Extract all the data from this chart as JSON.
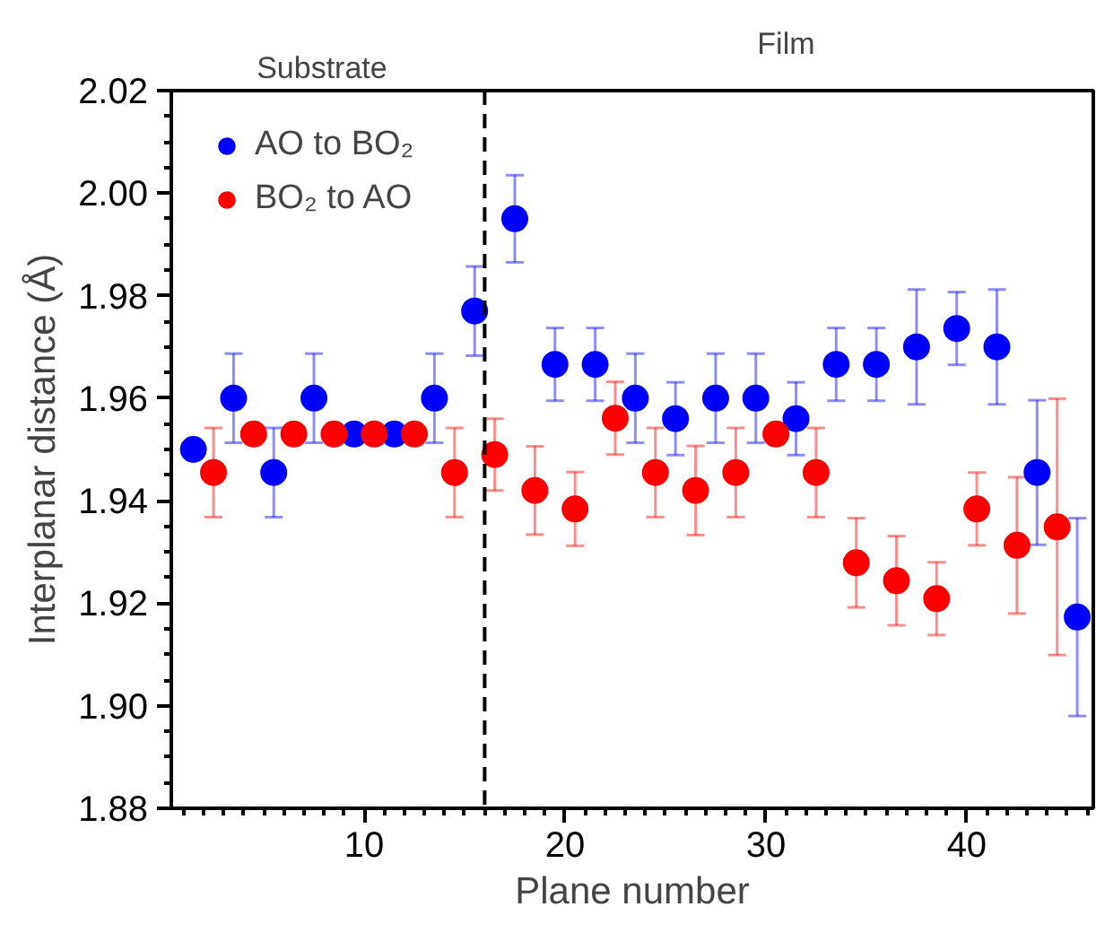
{
  "chart_data": {
    "type": "scatter",
    "xlabel": "Plane number",
    "ylabel": "Interplanar distance (Å)",
    "xlim": [
      0.4,
      46.3
    ],
    "ylim": [
      1.88,
      2.02
    ],
    "xticks": [
      10,
      20,
      30,
      40
    ],
    "yticks": [
      {
        "value": 1.88,
        "label": "1.88"
      },
      {
        "value": 1.9,
        "label": "1.90"
      },
      {
        "value": 1.92,
        "label": "1.92"
      },
      {
        "value": 1.94,
        "label": "1.94"
      },
      {
        "value": 1.96,
        "label": "1.96"
      },
      {
        "value": 1.98,
        "label": "1.98"
      },
      {
        "value": 2.0,
        "label": "2.00"
      },
      {
        "value": 2.02,
        "label": "2.02"
      }
    ],
    "grid": false,
    "legend": "top left",
    "marker": "circle",
    "ref_lines": [
      {
        "axis": "x",
        "value": 16,
        "label": null,
        "color": "#000000",
        "line_style": "dashed"
      }
    ],
    "annotations": [
      "Substrate",
      "Film"
    ],
    "series": [
      {
        "name": "AO to BO₂",
        "color": "#0000ff",
        "x": [
          1.5,
          3.5,
          5.5,
          7.5,
          9.5,
          11.5,
          13.5,
          15.5,
          17.5,
          19.5,
          21.5,
          23.5,
          25.5,
          27.5,
          29.5,
          31.5,
          33.5,
          35.5,
          37.5,
          39.5,
          41.5,
          43.5,
          45.5
        ],
        "values": [
          1.95,
          1.96,
          1.9455,
          1.96,
          1.953,
          1.953,
          1.96,
          1.977,
          1.995,
          1.9666,
          1.9666,
          1.96,
          1.956,
          1.96,
          1.96,
          1.956,
          1.9666,
          1.9666,
          1.97,
          1.9736,
          1.97,
          1.9455,
          1.9173
        ],
        "errors": [
          null,
          0.0087,
          0.0087,
          0.0087,
          null,
          null,
          0.0087,
          0.0087,
          0.0085,
          0.0071,
          0.0071,
          0.0087,
          0.0071,
          0.0087,
          0.0087,
          0.0071,
          0.0071,
          0.0071,
          0.0112,
          0.0071,
          0.0112,
          0.0141,
          0.0193
        ]
      },
      {
        "name": "BO₂ to AO",
        "color": "#ff0000",
        "x": [
          2.5,
          4.5,
          6.5,
          8.5,
          10.5,
          12.5,
          14.5,
          16.5,
          18.5,
          20.5,
          22.5,
          24.5,
          26.5,
          28.5,
          30.5,
          32.5,
          34.5,
          36.5,
          38.5,
          40.5,
          42.5,
          44.5
        ],
        "values": [
          1.9455,
          1.953,
          1.953,
          1.953,
          1.953,
          1.953,
          1.9455,
          1.949,
          1.942,
          1.9384,
          1.9561,
          1.9455,
          1.942,
          1.9455,
          1.953,
          1.9455,
          1.9279,
          1.9244,
          1.9209,
          1.9384,
          1.9313,
          1.9349
        ],
        "errors": [
          0.0087,
          null,
          null,
          null,
          null,
          null,
          0.0087,
          0.007,
          0.0086,
          0.0072,
          0.0071,
          0.0087,
          0.0087,
          0.0087,
          null,
          0.0087,
          0.0087,
          0.0087,
          0.0071,
          0.0071,
          0.0133,
          0.025
        ]
      }
    ]
  }
}
